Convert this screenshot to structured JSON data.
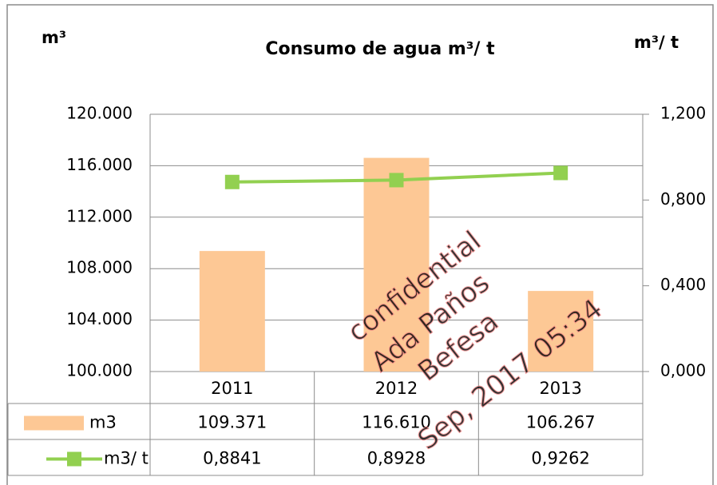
{
  "chart_data": {
    "type": "bar-line",
    "title": "Consumo de agua m³/ t",
    "y_axis_label": "m³",
    "y2_axis_label": "m³/ t",
    "categories": [
      "2011",
      "2012",
      "2013"
    ],
    "series": [
      {
        "name": "m3",
        "type": "bar",
        "color": "#fdc895",
        "axis": "y",
        "values": [
          109371,
          116610,
          106267
        ],
        "value_labels": [
          "109.371",
          "116.610",
          "106.267"
        ]
      },
      {
        "name": "m3/ t",
        "type": "line",
        "color": "#92d050",
        "axis": "y2",
        "values": [
          0.8841,
          0.8928,
          0.9262
        ],
        "value_labels": [
          "0,8841",
          "0,8928",
          "0,9262"
        ]
      }
    ],
    "ylim": [
      100000,
      120000
    ],
    "yticks": [
      {
        "value": 100000,
        "label": "100.000"
      },
      {
        "value": 104000,
        "label": "104.000"
      },
      {
        "value": 108000,
        "label": "108.000"
      },
      {
        "value": 112000,
        "label": "112.000"
      },
      {
        "value": 116000,
        "label": "116.000"
      },
      {
        "value": 120000,
        "label": "120.000"
      }
    ],
    "y2lim": [
      0,
      1.2
    ],
    "y2ticks": [
      {
        "value": 0,
        "label": "0,000"
      },
      {
        "value": 0.4,
        "label": "0,400"
      },
      {
        "value": 0.8,
        "label": "0,800"
      },
      {
        "value": 1.2,
        "label": "1,200"
      }
    ],
    "grid": true,
    "watermark": [
      "confidential",
      "Ada Paños",
      "Befesa",
      "Sep, 2017 05:34"
    ]
  }
}
